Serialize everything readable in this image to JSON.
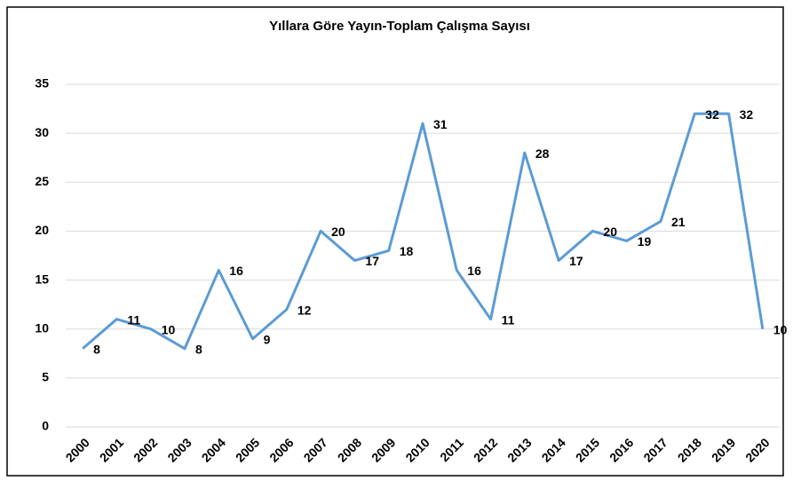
{
  "chart_data": {
    "type": "line",
    "title": "Yıllara Göre Yayın-Toplam Çalışma Sayısı",
    "categories": [
      "2000",
      "2001",
      "2002",
      "2003",
      "2004",
      "2005",
      "2006",
      "2007",
      "2008",
      "2009",
      "2010",
      "2011",
      "2012",
      "2013",
      "2014",
      "2015",
      "2016",
      "2017",
      "2018",
      "2019",
      "2020"
    ],
    "values": [
      8,
      11,
      10,
      8,
      16,
      9,
      12,
      20,
      17,
      18,
      31,
      16,
      11,
      28,
      17,
      20,
      19,
      21,
      32,
      32,
      10
    ],
    "color": "#5b9bd5",
    "ylim": [
      0,
      35
    ],
    "yticks": [
      0,
      5,
      10,
      15,
      20,
      25,
      30,
      35
    ],
    "grid": true
  }
}
